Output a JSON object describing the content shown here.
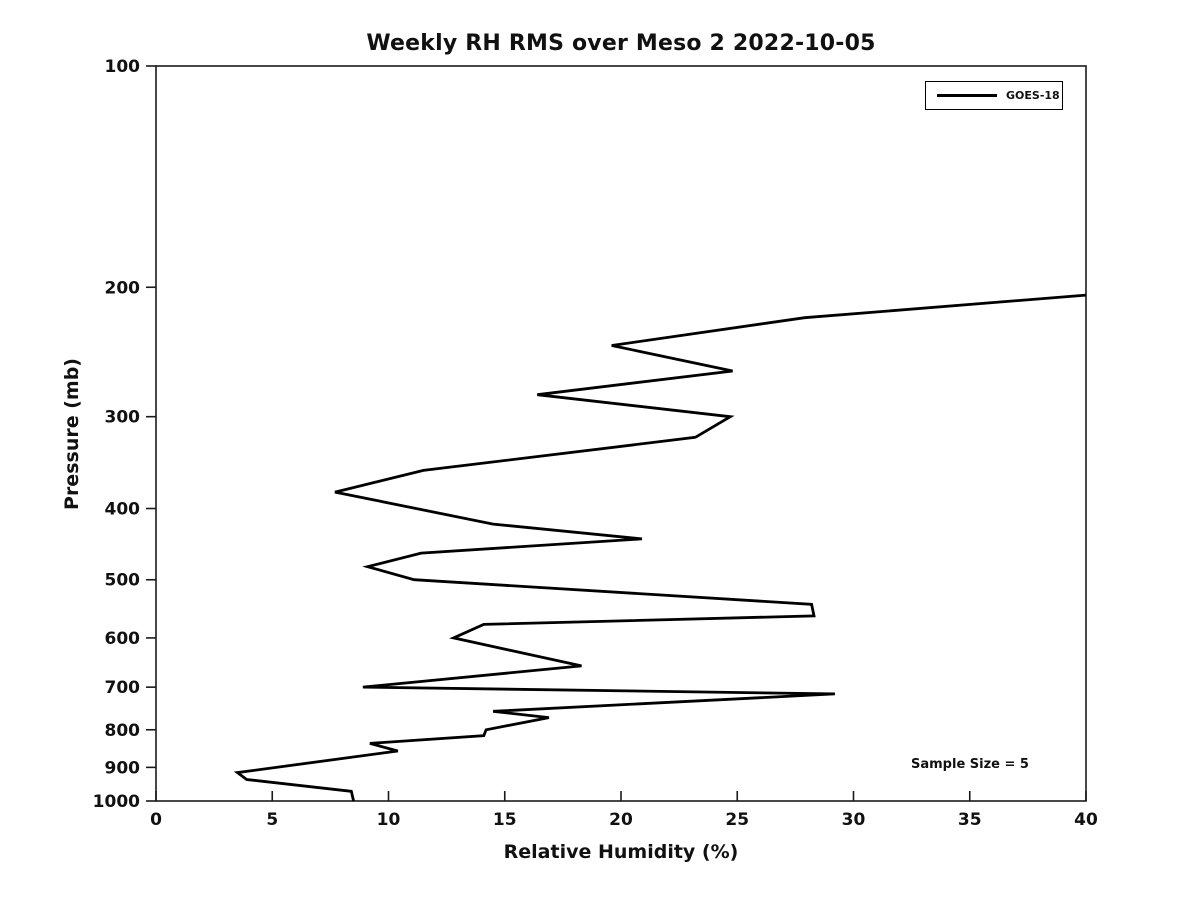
{
  "figure": {
    "background": "#ffffff",
    "text_color": "#111111",
    "axis_color": "#1a1a1a"
  },
  "chart_data": {
    "type": "line",
    "title": "Weekly RH RMS over Meso 2 2022-10-05",
    "xlabel": "Relative Humidity (%)",
    "ylabel": "Pressure (mb)",
    "xlim": [
      0,
      40
    ],
    "xticks": [
      0,
      5,
      10,
      15,
      20,
      25,
      30,
      35,
      40
    ],
    "ylim": [
      100,
      1000
    ],
    "yscale": "log",
    "y_increases_downward": true,
    "yticks": [
      100,
      200,
      300,
      400,
      500,
      600,
      700,
      800,
      900,
      1000
    ],
    "grid": false,
    "legend": {
      "position": "top-right",
      "entries": [
        {
          "label": "GOES-18",
          "color": "#000000"
        }
      ]
    },
    "annotation": {
      "text": "Sample Size = 5"
    },
    "series": [
      {
        "name": "GOES-18",
        "color": "#000000",
        "line_width": 2.8,
        "points_rh_pressure": [
          [
            40.0,
            205
          ],
          [
            27.9,
            220
          ],
          [
            19.6,
            240
          ],
          [
            24.8,
            260
          ],
          [
            16.4,
            280
          ],
          [
            24.7,
            300
          ],
          [
            23.2,
            320
          ],
          [
            11.5,
            355
          ],
          [
            7.7,
            380
          ],
          [
            14.5,
            420
          ],
          [
            20.9,
            440
          ],
          [
            11.4,
            460
          ],
          [
            9.1,
            480
          ],
          [
            11.1,
            500
          ],
          [
            28.2,
            540
          ],
          [
            28.3,
            560
          ],
          [
            14.1,
            575
          ],
          [
            12.8,
            600
          ],
          [
            18.3,
            655
          ],
          [
            8.9,
            700
          ],
          [
            29.2,
            715
          ],
          [
            14.5,
            755
          ],
          [
            16.9,
            770
          ],
          [
            14.2,
            800
          ],
          [
            14.1,
            815
          ],
          [
            9.2,
            835
          ],
          [
            10.4,
            855
          ],
          [
            3.5,
            915
          ],
          [
            3.9,
            935
          ],
          [
            8.4,
            970
          ],
          [
            8.5,
            1000
          ]
        ]
      }
    ]
  }
}
